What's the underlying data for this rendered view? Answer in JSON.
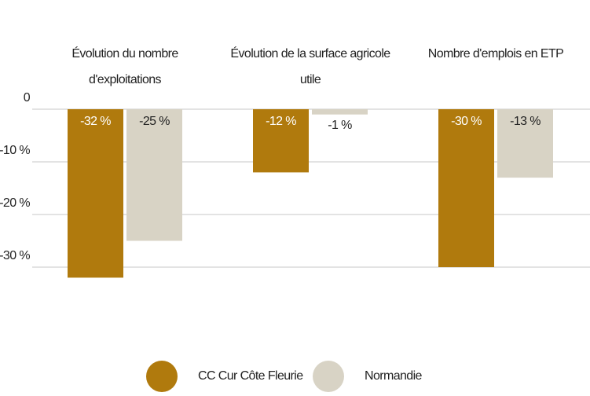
{
  "chart_data": {
    "type": "bar",
    "categories": [
      "Évolution du nombre d'exploitations",
      "Évolution de la surface agricole utile",
      "Nombre d'emplois en ETP"
    ],
    "series": [
      {
        "name": "CC Cur Côte Fleurie",
        "color": "#b07a0d",
        "values": [
          -32,
          -12,
          -30
        ],
        "value_labels": [
          "-32 %",
          "-12 %",
          "-30 %"
        ]
      },
      {
        "name": "Normandie",
        "color": "#d8d3c5",
        "values": [
          -25,
          -1,
          -13
        ],
        "value_labels": [
          "-25 %",
          "-1 %",
          "-13 %"
        ]
      }
    ],
    "ylim": [
      -35,
      0
    ],
    "yticks": [
      {
        "value": 0,
        "label": "0"
      },
      {
        "value": -10,
        "label": "-10 %"
      },
      {
        "value": -20,
        "label": "-20 %"
      },
      {
        "value": -30,
        "label": "-30 %"
      }
    ],
    "grid": true
  }
}
